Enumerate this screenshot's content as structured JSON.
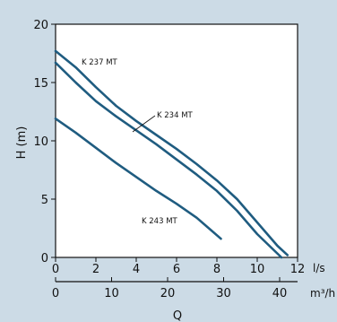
{
  "chart_data": {
    "type": "line",
    "title": "",
    "ylabel": "H (m)",
    "xlabel": "Q",
    "x_unit_primary": "l/s",
    "x_unit_secondary": "m³/h",
    "xlim": [
      0,
      12
    ],
    "ylim": [
      0,
      20
    ],
    "x_ticks_primary": [
      0,
      2,
      4,
      6,
      8,
      10,
      12
    ],
    "x_ticks_secondary": [
      0,
      10,
      20,
      30,
      40
    ],
    "y_ticks": [
      0,
      5,
      10,
      15,
      20
    ],
    "grid": "horizontal",
    "series": [
      {
        "name": "K 237 MT",
        "color": "#1f5c80",
        "x": [
          0,
          1,
          2,
          3,
          4,
          5,
          6,
          7,
          8,
          9,
          10,
          11,
          11.5
        ],
        "y": [
          17.7,
          16.3,
          14.6,
          13.0,
          11.7,
          10.5,
          9.3,
          8.0,
          6.6,
          5.0,
          3.0,
          1.0,
          0.2
        ]
      },
      {
        "name": "K 234 MT",
        "color": "#1f5c80",
        "x": [
          0,
          1,
          2,
          3,
          4,
          5,
          6,
          7,
          8,
          9,
          10,
          11.2
        ],
        "y": [
          16.7,
          15.0,
          13.4,
          12.1,
          10.9,
          9.7,
          8.4,
          7.1,
          5.7,
          4.0,
          2.0,
          0
        ]
      },
      {
        "name": "K 243 MT",
        "color": "#1f5c80",
        "x": [
          0,
          1,
          2,
          3,
          4,
          5,
          6,
          7,
          8.2
        ],
        "y": [
          11.9,
          10.7,
          9.4,
          8.1,
          6.9,
          5.7,
          4.6,
          3.4,
          1.6
        ]
      }
    ],
    "labels": [
      {
        "text": "K 237 MT",
        "series": 0
      },
      {
        "text": "K 234 MT",
        "series": 1
      },
      {
        "text": "K 243 MT",
        "series": 2
      }
    ]
  }
}
